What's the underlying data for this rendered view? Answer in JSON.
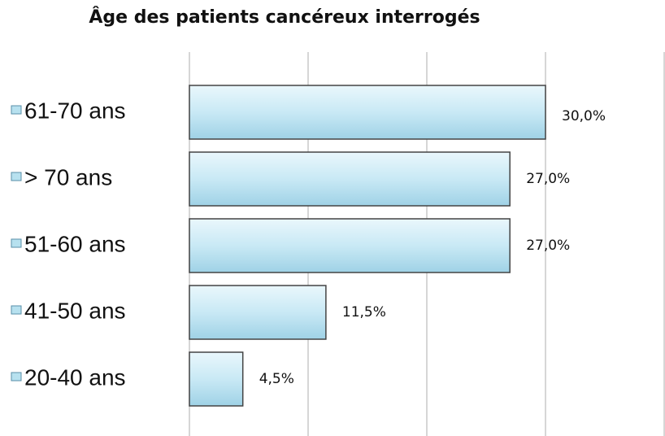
{
  "chart_data": {
    "type": "hbar",
    "title": "Âge des patients cancéreux interrogés",
    "categories": [
      "61-70 ans",
      "> 70 ans",
      "51-60 ans",
      "41-50 ans",
      "20-40 ans"
    ],
    "values": [
      30.0,
      27.0,
      27.0,
      11.5,
      4.5
    ],
    "value_labels": [
      "30,0%",
      "27,0%",
      "27,0%",
      "11,5%",
      "4,5%"
    ],
    "color": "#b7e1ef",
    "xlim": [
      0,
      40
    ],
    "xticks": [
      0,
      10,
      20,
      30,
      40
    ],
    "grid": true
  }
}
